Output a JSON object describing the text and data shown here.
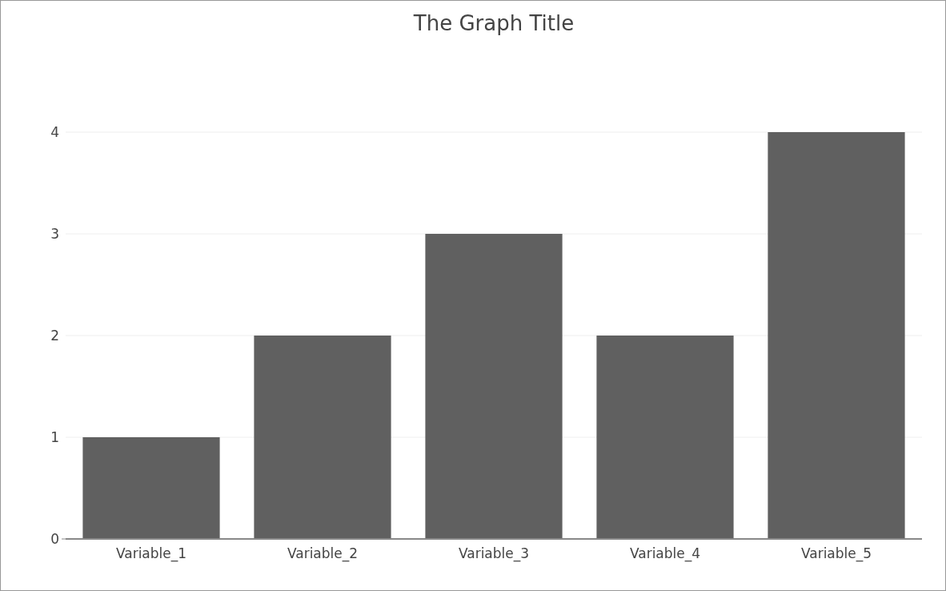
{
  "chart_data": {
    "type": "bar",
    "title": "The Graph Title",
    "categories": [
      "Variable_1",
      "Variable_2",
      "Variable_3",
      "Variable_4",
      "Variable_5"
    ],
    "values": [
      1,
      2,
      3,
      2,
      4
    ],
    "color": "#606060",
    "ylim": [
      0,
      4
    ],
    "yticks": [
      0,
      1,
      2,
      3,
      4
    ],
    "grid": "y"
  }
}
